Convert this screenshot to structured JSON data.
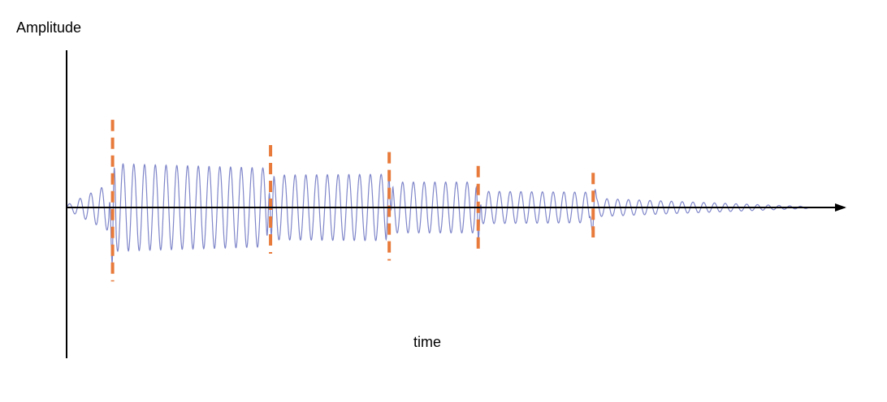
{
  "chart_data": {
    "type": "line",
    "title": "",
    "xlabel": "time",
    "ylabel": "Amplitude",
    "xlim": [
      0,
      100
    ],
    "ylim": [
      -1.7,
      1.7
    ],
    "grid": false,
    "legend": "none",
    "series": [
      {
        "signal": "damped-oscillation",
        "segments": [
          {
            "start": 0,
            "end": 6.2,
            "amp_start": 0.05,
            "amp_end": 0.55
          },
          {
            "start": 6.2,
            "end": 27.5,
            "amp_start": 0.95,
            "amp_end": 0.85
          },
          {
            "start": 27.5,
            "end": 43.5,
            "amp_start": 0.7,
            "amp_end": 0.72
          },
          {
            "start": 43.5,
            "end": 55.5,
            "amp_start": 0.55,
            "amp_end": 0.55
          },
          {
            "start": 55.5,
            "end": 71.0,
            "amp_start": 0.35,
            "amp_end": 0.33
          },
          {
            "start": 71.0,
            "end": 100,
            "amp_start": 0.2,
            "amp_end": 0.02
          }
        ],
        "spikes": [
          {
            "x": 6.2,
            "peak": 1.6,
            "trough": -1.6
          },
          {
            "x": 27.5,
            "peak": 1.1,
            "trough": -0.9
          },
          {
            "x": 43.5,
            "peak": 0.8,
            "trough": -0.9
          },
          {
            "x": 55.5,
            "peak": 0.8,
            "trough": -0.8
          },
          {
            "x": 71.0,
            "peak": 0.7,
            "trough": -0.6
          }
        ]
      }
    ],
    "markers": [
      {
        "x": 6.2,
        "top": 1.9,
        "bottom": -1.6
      },
      {
        "x": 27.5,
        "top": 1.35,
        "bottom": -1.0
      },
      {
        "x": 43.5,
        "top": 1.2,
        "bottom": -1.15
      },
      {
        "x": 55.5,
        "top": 0.9,
        "bottom": -0.9
      },
      {
        "x": 71.0,
        "top": 0.75,
        "bottom": -0.65
      }
    ],
    "colors": {
      "signal": "#7f86c9",
      "markers": "#e87b3c",
      "axes": "#000000"
    }
  }
}
